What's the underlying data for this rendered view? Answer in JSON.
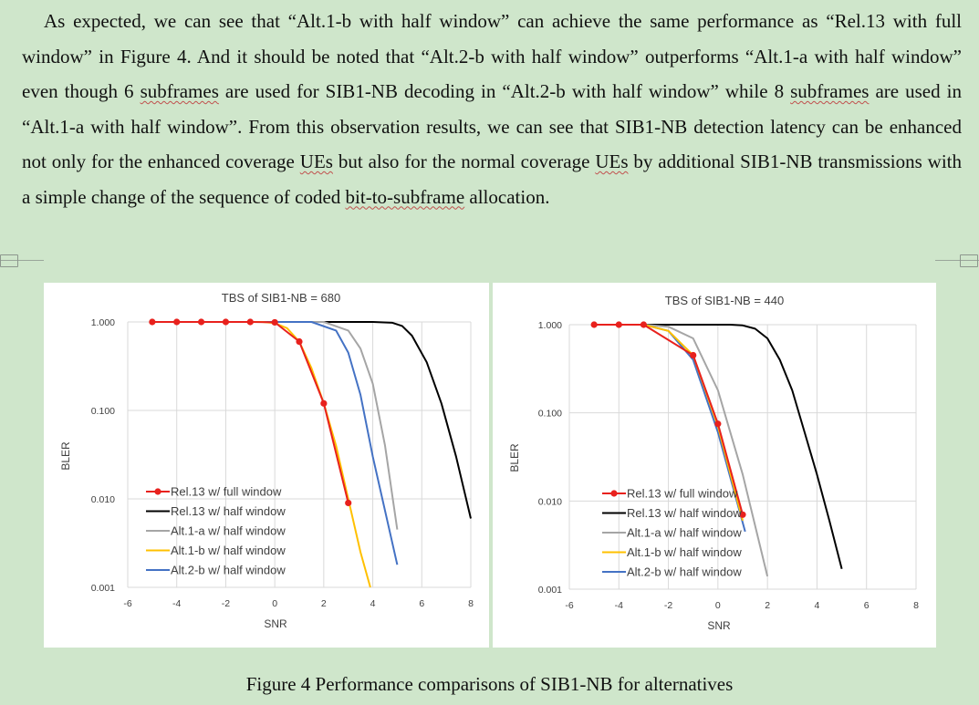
{
  "document": {
    "paragraph": [
      {
        "t": "As expected, we can see that “Alt.1-b with half window” can achieve the same performance as “Rel.13 with full window” in Figure 4. And it should be noted that “Alt.2-b with half window” outperforms “Alt.1-a with half window” even though 6 "
      },
      {
        "t": "subframes",
        "sq": true
      },
      {
        "t": " are used for SIB1-NB decoding in “Alt.2-b with half window” while 8 "
      },
      {
        "t": "subframes",
        "sq": true
      },
      {
        "t": " are used in “Alt.1-a with half window”. From this observation results, we can see that SIB1-NB detection latency can be enhanced not only for the enhanced coverage "
      },
      {
        "t": "UEs",
        "sq": true
      },
      {
        "t": " but also for the normal coverage "
      },
      {
        "t": "UEs",
        "sq": true
      },
      {
        "t": " by additional SIB1-NB transmissions with a simple change of the sequence of coded "
      },
      {
        "t": "bit-to-subframe",
        "sq": true
      },
      {
        "t": " allocation."
      }
    ],
    "caption": "Figure 4 Performance comparisons of SIB1-NB for alternatives"
  },
  "colors": {
    "rel13_full": "#e8211d",
    "rel13_half": "#000000",
    "alt1a": "#a5a5a5",
    "alt1b": "#ffc000",
    "alt2b": "#4472c4"
  },
  "chart_data": [
    {
      "type": "line",
      "title": "TBS of SIB1-NB = 680",
      "xlabel": "SNR",
      "ylabel": "BLER",
      "xlim": [
        -6,
        8
      ],
      "ylim": [
        0.001,
        1
      ],
      "yscale": "log",
      "xticks": [
        "-6",
        "-4",
        "-2",
        "0",
        "2",
        "4",
        "6",
        "8"
      ],
      "yticks": [
        "1.000",
        "0.100",
        "0.010",
        "0.001"
      ],
      "legend_position": "bottom-left",
      "series": [
        {
          "name": "Rel.13 w/ full window",
          "color": "#e8211d",
          "markers": true,
          "x": [
            -5,
            -4,
            -3,
            -2,
            -1,
            0,
            1,
            2,
            3
          ],
          "y": [
            1,
            1,
            1,
            1,
            1,
            0.99,
            0.6,
            0.12,
            0.009
          ]
        },
        {
          "name": "Rel.13 w/ half window",
          "color": "#000000",
          "markers": false,
          "x": [
            -5,
            2,
            3,
            4,
            4.8,
            5.2,
            5.6,
            6.2,
            6.8,
            7.4,
            8
          ],
          "y": [
            1,
            1,
            1,
            1,
            0.98,
            0.9,
            0.7,
            0.35,
            0.12,
            0.03,
            0.006
          ]
        },
        {
          "name": "Alt.1-a w/ half window",
          "color": "#a5a5a5",
          "markers": false,
          "x": [
            -5,
            2,
            3,
            3.5,
            4,
            4.5,
            5
          ],
          "y": [
            1,
            1,
            0.8,
            0.5,
            0.2,
            0.04,
            0.0045
          ]
        },
        {
          "name": "Alt.1-b w/ half window",
          "color": "#ffc000",
          "markers": false,
          "x": [
            -5,
            -0.5,
            0,
            0.5,
            1,
            1.5,
            2,
            2.5,
            3,
            3.5,
            3.9
          ],
          "y": [
            1,
            1,
            0.97,
            0.85,
            0.6,
            0.3,
            0.12,
            0.04,
            0.01,
            0.0025,
            0.001
          ]
        },
        {
          "name": "Alt.2-b w/ half window",
          "color": "#4472c4",
          "markers": false,
          "x": [
            -5,
            1.5,
            2.5,
            3,
            3.5,
            4,
            5
          ],
          "y": [
            1,
            1,
            0.8,
            0.45,
            0.15,
            0.03,
            0.0018
          ]
        }
      ]
    },
    {
      "type": "line",
      "title": "TBS of SIB1-NB = 440",
      "xlabel": "SNR",
      "ylabel": "BLER",
      "xlim": [
        -6,
        8
      ],
      "ylim": [
        0.001,
        1
      ],
      "yscale": "log",
      "xticks": [
        "-6",
        "-4",
        "-2",
        "0",
        "2",
        "4",
        "6",
        "8"
      ],
      "yticks": [
        "1.000",
        "0.100",
        "0.010",
        "0.001"
      ],
      "legend_position": "bottom-left",
      "series": [
        {
          "name": "Rel.13 w/ full window",
          "color": "#e8211d",
          "markers": true,
          "x": [
            -5,
            -4,
            -3,
            -1,
            0,
            1
          ],
          "y": [
            1,
            1,
            1,
            0.45,
            0.075,
            0.007
          ]
        },
        {
          "name": "Rel.13 w/ half window",
          "color": "#000000",
          "markers": false,
          "x": [
            -5,
            0.5,
            1,
            1.5,
            2,
            2.5,
            3,
            3.5,
            4,
            4.5,
            5
          ],
          "y": [
            1,
            1,
            0.98,
            0.9,
            0.7,
            0.4,
            0.18,
            0.06,
            0.02,
            0.006,
            0.0017
          ]
        },
        {
          "name": "Alt.1-a w/ half window",
          "color": "#a5a5a5",
          "markers": false,
          "x": [
            -5,
            -3,
            -2,
            -1,
            0,
            1,
            2
          ],
          "y": [
            1,
            1,
            0.95,
            0.7,
            0.18,
            0.02,
            0.0014
          ]
        },
        {
          "name": "Alt.1-b w/ half window",
          "color": "#ffc000",
          "markers": false,
          "x": [
            -5,
            -3,
            -2,
            -1,
            0,
            1
          ],
          "y": [
            1,
            1,
            0.85,
            0.45,
            0.07,
            0.006
          ]
        },
        {
          "name": "Alt.2-b w/ half window",
          "color": "#4472c4",
          "markers": false,
          "x": [
            -5,
            -3,
            -2,
            -1,
            0,
            1.1
          ],
          "y": [
            1,
            1,
            0.85,
            0.4,
            0.06,
            0.0045
          ]
        }
      ]
    }
  ]
}
